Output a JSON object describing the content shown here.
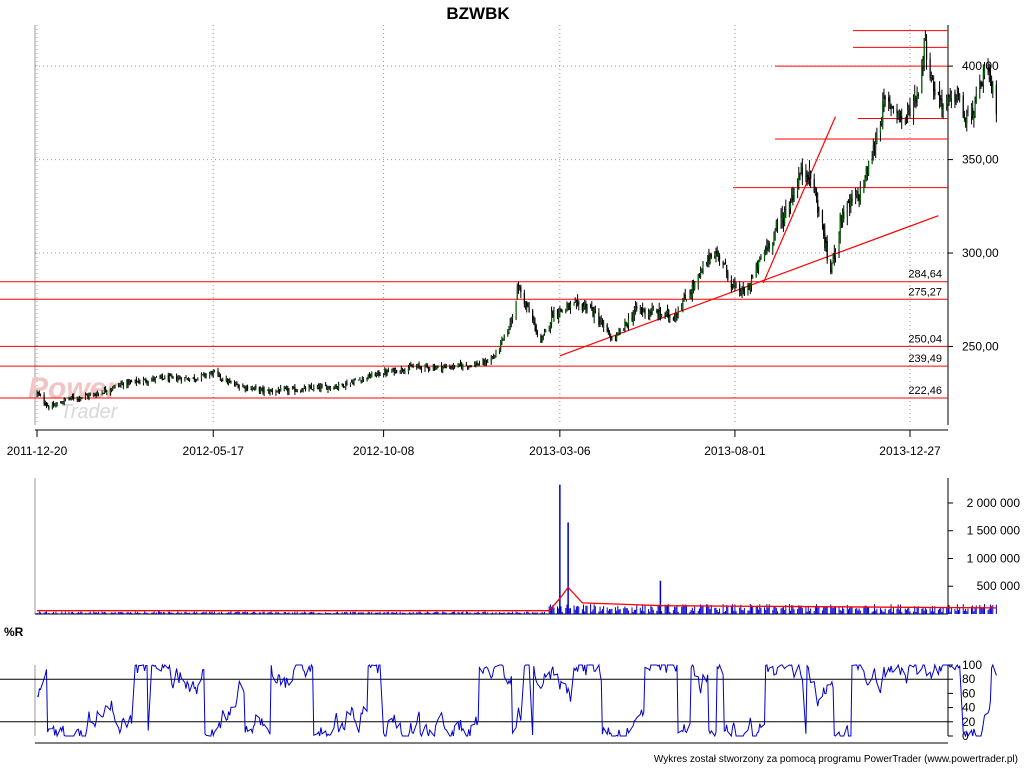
{
  "title": "BZWBK",
  "footer": "Wykres został stworzony za pomocą programu PowerTrader (www.powertrader.pl)",
  "watermark": {
    "line1": "Power",
    "line2": "Trader"
  },
  "colors": {
    "candle": "#006400",
    "support": "#ff0000",
    "volume": "#0000cc",
    "volume_avg": "#ff0000",
    "indicator": "#0000cc",
    "grid": "#999999",
    "axis": "#000000"
  },
  "chart_data": [
    {
      "type": "candlestick",
      "title": "BZWBK",
      "x_tick_labels": [
        "2011-12-20",
        "2012-05-17",
        "2012-10-08",
        "2013-03-06",
        "2013-08-01",
        "2013-12-27"
      ],
      "y_tick_labels": [
        "250,00",
        "300,00",
        "350,00",
        "400,00"
      ],
      "y_ticks": [
        250,
        300,
        350,
        400
      ],
      "ylim": [
        208,
        422
      ],
      "grid": true,
      "horizontal_levels": [
        {
          "value": 284.64,
          "label": "284,64"
        },
        {
          "value": 275.27,
          "label": "275,27"
        },
        {
          "value": 250.04,
          "label": "250,04"
        },
        {
          "value": 239.49,
          "label": "239,49"
        },
        {
          "value": 222.46,
          "label": "222,46"
        }
      ],
      "short_levels": [
        419,
        410,
        400,
        372,
        361,
        335
      ],
      "trendlines": [
        {
          "from": [
            "2013-03-06",
            245
          ],
          "to": [
            "2014-01-20",
            320
          ]
        },
        {
          "from": [
            "2013-08-25",
            284
          ],
          "to": [
            "2013-10-25",
            373
          ]
        }
      ],
      "close_path": [
        [
          "2011-12-20",
          225
        ],
        [
          "2011-12-31",
          217
        ],
        [
          "2012-01-15",
          222
        ],
        [
          "2012-02-05",
          224
        ],
        [
          "2012-03-01",
          230
        ],
        [
          "2012-04-01",
          233
        ],
        [
          "2012-05-01",
          233
        ],
        [
          "2012-05-17",
          236
        ],
        [
          "2012-06-01",
          230
        ],
        [
          "2012-07-01",
          226
        ],
        [
          "2012-08-01",
          227
        ],
        [
          "2012-09-01",
          229
        ],
        [
          "2012-10-01",
          235
        ],
        [
          "2012-11-01",
          239
        ],
        [
          "2012-12-01",
          239
        ],
        [
          "2013-01-01",
          241
        ],
        [
          "2013-01-10",
          245
        ],
        [
          "2013-01-22",
          260
        ],
        [
          "2013-01-30",
          282
        ],
        [
          "2013-02-10",
          265
        ],
        [
          "2013-02-18",
          252
        ],
        [
          "2013-02-28",
          268
        ],
        [
          "2013-03-15",
          271
        ],
        [
          "2013-03-30",
          272
        ],
        [
          "2013-04-10",
          262
        ],
        [
          "2013-04-20",
          253
        ],
        [
          "2013-05-01",
          262
        ],
        [
          "2013-05-10",
          270
        ],
        [
          "2013-05-25",
          268
        ],
        [
          "2013-06-10",
          266
        ],
        [
          "2013-06-30",
          285
        ],
        [
          "2013-07-12",
          300
        ],
        [
          "2013-07-20",
          298
        ],
        [
          "2013-07-30",
          282
        ],
        [
          "2013-08-10",
          278
        ],
        [
          "2013-08-25",
          300
        ],
        [
          "2013-09-15",
          325
        ],
        [
          "2013-09-25",
          342
        ],
        [
          "2013-10-01",
          345
        ],
        [
          "2013-10-07",
          334
        ],
        [
          "2013-10-15",
          310
        ],
        [
          "2013-10-20",
          288
        ],
        [
          "2013-10-30",
          320
        ],
        [
          "2013-11-15",
          332
        ],
        [
          "2013-11-25",
          352
        ],
        [
          "2013-12-05",
          380
        ],
        [
          "2013-12-15",
          378
        ],
        [
          "2013-12-22",
          370
        ],
        [
          "2014-01-05",
          390
        ],
        [
          "2014-01-08",
          415
        ],
        [
          "2014-01-15",
          390
        ],
        [
          "2014-01-25",
          378
        ],
        [
          "2014-02-05",
          385
        ],
        [
          "2014-02-12",
          370
        ],
        [
          "2014-02-20",
          378
        ],
        [
          "2014-03-01",
          400
        ],
        [
          "2014-03-10",
          378
        ]
      ]
    },
    {
      "type": "bar",
      "series_name": "volume",
      "y_tick_labels": [
        "500 000",
        "1 000 000",
        "1 500 000",
        "2 000 000"
      ],
      "y_ticks": [
        500000,
        1000000,
        1500000,
        2000000
      ],
      "ylim": [
        0,
        2450000
      ],
      "spikes": [
        [
          "2013-03-06",
          2330000
        ],
        [
          "2013-03-13",
          1650000
        ],
        [
          "2013-05-30",
          600000
        ],
        [
          "2012-04-01",
          60000
        ]
      ],
      "baseline_volume_before": 30000,
      "baseline_volume_after": 120000,
      "avg_line": [
        [
          "2011-12-20",
          60000
        ],
        [
          "2013-02-25",
          60000
        ],
        [
          "2013-03-06",
          280000
        ],
        [
          "2013-03-13",
          480000
        ],
        [
          "2013-03-25",
          200000
        ],
        [
          "2013-06-01",
          150000
        ],
        [
          "2014-03-10",
          110000
        ]
      ]
    },
    {
      "type": "line",
      "series_name": "%R",
      "label": "%R",
      "y_tick_labels": [
        "0",
        "20",
        "40",
        "60",
        "80",
        "100"
      ],
      "y_ticks": [
        0,
        20,
        40,
        60,
        80,
        100
      ],
      "ylim": [
        0,
        100
      ],
      "reference_lines": [
        20,
        80
      ]
    }
  ]
}
